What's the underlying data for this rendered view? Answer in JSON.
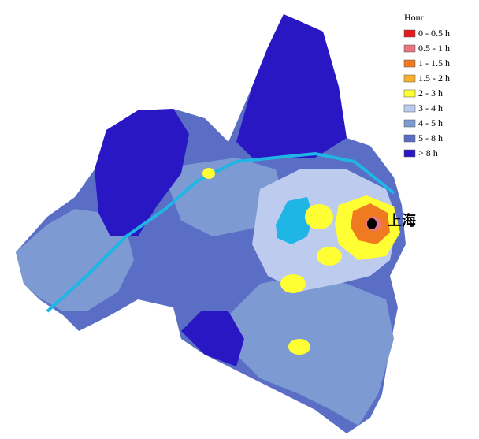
{
  "legend": {
    "title": "Hour",
    "items": [
      {
        "label": "0 - 0.5 h",
        "color": "#e41a1c"
      },
      {
        "label": "0.5 - 1 h",
        "color": "#e87582"
      },
      {
        "label": "1 - 1.5 h",
        "color": "#f07a1f"
      },
      {
        "label": "1.5 - 2 h",
        "color": "#f6b02c"
      },
      {
        "label": "2 - 3 h",
        "color": "#ffff33"
      },
      {
        "label": "3 - 4 h",
        "color": "#bccbee"
      },
      {
        "label": "4 - 5 h",
        "color": "#7d9ad3"
      },
      {
        "label": "5 - 8 h",
        "color": "#5a6ec6"
      },
      {
        "label": "> 8 h",
        "color": "#2a17c4"
      }
    ]
  },
  "city_label": "上海"
}
